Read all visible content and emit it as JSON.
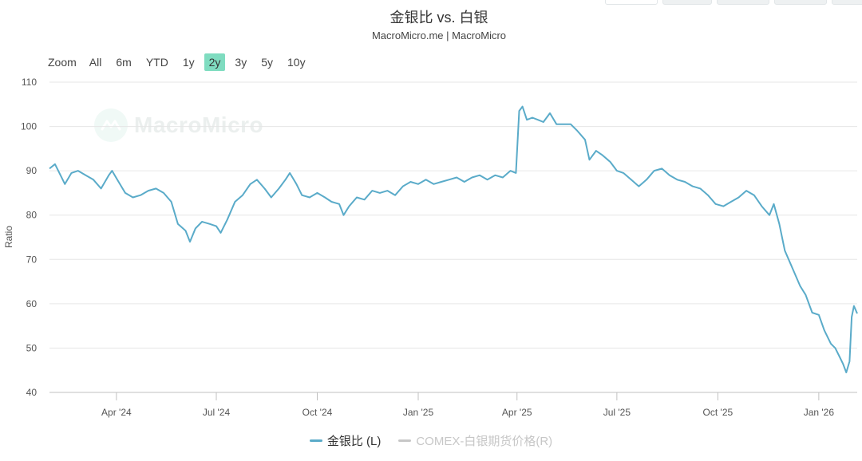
{
  "title": "金银比 vs. 白银",
  "subtitle": "MacroMicro.me | MacroMicro",
  "watermark": "MacroMicro",
  "range_selector": {
    "zoom_label": "Zoom",
    "buttons": [
      "All",
      "6m",
      "YTD",
      "1y",
      "2y",
      "3y",
      "5y",
      "10y"
    ],
    "active": "2y"
  },
  "legend": [
    {
      "label": "金银比 (L)",
      "color": "#5aabc9",
      "enabled": true
    },
    {
      "label": "COMEX-白银期货价格(R)",
      "color": "#c7c7c7",
      "enabled": false
    }
  ],
  "colors": {
    "series": "#5aabc9",
    "grid": "#e6e6e6",
    "active_button": "#7fdcc0"
  },
  "chart_data": {
    "type": "line",
    "title": "金银比 vs. 白银",
    "ylabel": "Ratio",
    "ylim": [
      40,
      110
    ],
    "yticks": [
      40,
      50,
      60,
      70,
      80,
      90,
      100,
      110
    ],
    "xlim": [
      "2024-01-31",
      "2026-02-05"
    ],
    "xticks": [
      {
        "date": "2024-04-01",
        "label": "Apr '24"
      },
      {
        "date": "2024-07-01",
        "label": "Jul '24"
      },
      {
        "date": "2024-10-01",
        "label": "Oct '24"
      },
      {
        "date": "2025-01-01",
        "label": "Jan '25"
      },
      {
        "date": "2025-04-01",
        "label": "Apr '25"
      },
      {
        "date": "2025-07-01",
        "label": "Jul '25"
      },
      {
        "date": "2025-10-01",
        "label": "Oct '25"
      },
      {
        "date": "2026-01-01",
        "label": "Jan '26"
      }
    ],
    "grid": true,
    "legend_position": "bottom",
    "series": [
      {
        "name": "金银比 (L)",
        "points": [
          [
            "2024-01-31",
            90.5
          ],
          [
            "2024-02-05",
            91.5
          ],
          [
            "2024-02-10",
            89.0
          ],
          [
            "2024-02-14",
            87.0
          ],
          [
            "2024-02-20",
            89.5
          ],
          [
            "2024-02-26",
            90.0
          ],
          [
            "2024-03-04",
            89.0
          ],
          [
            "2024-03-11",
            88.0
          ],
          [
            "2024-03-18",
            86.0
          ],
          [
            "2024-03-25",
            89.0
          ],
          [
            "2024-03-28",
            90.0
          ],
          [
            "2024-04-03",
            87.5
          ],
          [
            "2024-04-09",
            85.0
          ],
          [
            "2024-04-16",
            84.0
          ],
          [
            "2024-04-23",
            84.5
          ],
          [
            "2024-04-30",
            85.5
          ],
          [
            "2024-05-07",
            86.0
          ],
          [
            "2024-05-14",
            85.0
          ],
          [
            "2024-05-21",
            83.0
          ],
          [
            "2024-05-27",
            78.0
          ],
          [
            "2024-06-03",
            76.5
          ],
          [
            "2024-06-07",
            74.0
          ],
          [
            "2024-06-12",
            77.0
          ],
          [
            "2024-06-18",
            78.5
          ],
          [
            "2024-06-25",
            78.0
          ],
          [
            "2024-07-01",
            77.5
          ],
          [
            "2024-07-05",
            76.0
          ],
          [
            "2024-07-11",
            79.0
          ],
          [
            "2024-07-18",
            83.0
          ],
          [
            "2024-07-25",
            84.5
          ],
          [
            "2024-08-01",
            87.0
          ],
          [
            "2024-08-07",
            88.0
          ],
          [
            "2024-08-14",
            86.0
          ],
          [
            "2024-08-20",
            84.0
          ],
          [
            "2024-08-27",
            86.0
          ],
          [
            "2024-09-02",
            88.0
          ],
          [
            "2024-09-06",
            89.5
          ],
          [
            "2024-09-12",
            87.0
          ],
          [
            "2024-09-17",
            84.5
          ],
          [
            "2024-09-24",
            84.0
          ],
          [
            "2024-10-01",
            85.0
          ],
          [
            "2024-10-08",
            84.0
          ],
          [
            "2024-10-14",
            83.0
          ],
          [
            "2024-10-21",
            82.5
          ],
          [
            "2024-10-25",
            80.0
          ],
          [
            "2024-10-30",
            82.0
          ],
          [
            "2024-11-06",
            84.0
          ],
          [
            "2024-11-13",
            83.5
          ],
          [
            "2024-11-20",
            85.5
          ],
          [
            "2024-11-27",
            85.0
          ],
          [
            "2024-12-04",
            85.5
          ],
          [
            "2024-12-11",
            84.5
          ],
          [
            "2024-12-18",
            86.5
          ],
          [
            "2024-12-25",
            87.5
          ],
          [
            "2025-01-01",
            87.0
          ],
          [
            "2025-01-08",
            88.0
          ],
          [
            "2025-01-15",
            87.0
          ],
          [
            "2025-01-22",
            87.5
          ],
          [
            "2025-01-29",
            88.0
          ],
          [
            "2025-02-05",
            88.5
          ],
          [
            "2025-02-12",
            87.5
          ],
          [
            "2025-02-19",
            88.5
          ],
          [
            "2025-02-26",
            89.0
          ],
          [
            "2025-03-05",
            88.0
          ],
          [
            "2025-03-12",
            89.0
          ],
          [
            "2025-03-19",
            88.5
          ],
          [
            "2025-03-26",
            90.0
          ],
          [
            "2025-03-31",
            89.5
          ],
          [
            "2025-04-03",
            103.5
          ],
          [
            "2025-04-06",
            104.5
          ],
          [
            "2025-04-10",
            101.5
          ],
          [
            "2025-04-15",
            102.0
          ],
          [
            "2025-04-20",
            101.5
          ],
          [
            "2025-04-25",
            101.0
          ],
          [
            "2025-05-01",
            103.0
          ],
          [
            "2025-05-07",
            100.5
          ],
          [
            "2025-05-13",
            100.5
          ],
          [
            "2025-05-20",
            100.5
          ],
          [
            "2025-05-26",
            99.0
          ],
          [
            "2025-06-02",
            97.0
          ],
          [
            "2025-06-06",
            92.5
          ],
          [
            "2025-06-12",
            94.5
          ],
          [
            "2025-06-18",
            93.5
          ],
          [
            "2025-06-25",
            92.0
          ],
          [
            "2025-07-01",
            90.0
          ],
          [
            "2025-07-07",
            89.5
          ],
          [
            "2025-07-14",
            88.0
          ],
          [
            "2025-07-21",
            86.5
          ],
          [
            "2025-07-28",
            88.0
          ],
          [
            "2025-08-04",
            90.0
          ],
          [
            "2025-08-11",
            90.5
          ],
          [
            "2025-08-18",
            89.0
          ],
          [
            "2025-08-25",
            88.0
          ],
          [
            "2025-09-01",
            87.5
          ],
          [
            "2025-09-08",
            86.5
          ],
          [
            "2025-09-15",
            86.0
          ],
          [
            "2025-09-22",
            84.5
          ],
          [
            "2025-09-29",
            82.5
          ],
          [
            "2025-10-06",
            82.0
          ],
          [
            "2025-10-13",
            83.0
          ],
          [
            "2025-10-20",
            84.0
          ],
          [
            "2025-10-27",
            85.5
          ],
          [
            "2025-11-03",
            84.5
          ],
          [
            "2025-11-10",
            82.0
          ],
          [
            "2025-11-17",
            80.0
          ],
          [
            "2025-11-21",
            82.5
          ],
          [
            "2025-11-26",
            78.0
          ],
          [
            "2025-12-01",
            72.0
          ],
          [
            "2025-12-08",
            68.0
          ],
          [
            "2025-12-15",
            64.0
          ],
          [
            "2025-12-20",
            62.0
          ],
          [
            "2025-12-26",
            58.0
          ],
          [
            "2026-01-01",
            57.5
          ],
          [
            "2026-01-06",
            54.0
          ],
          [
            "2026-01-12",
            51.0
          ],
          [
            "2026-01-16",
            50.0
          ],
          [
            "2026-01-20",
            48.0
          ],
          [
            "2026-01-23",
            46.5
          ],
          [
            "2026-01-26",
            44.5
          ],
          [
            "2026-01-29",
            47.0
          ],
          [
            "2026-01-31",
            57.0
          ],
          [
            "2026-02-02",
            59.5
          ],
          [
            "2026-02-05",
            57.8
          ]
        ]
      }
    ]
  }
}
